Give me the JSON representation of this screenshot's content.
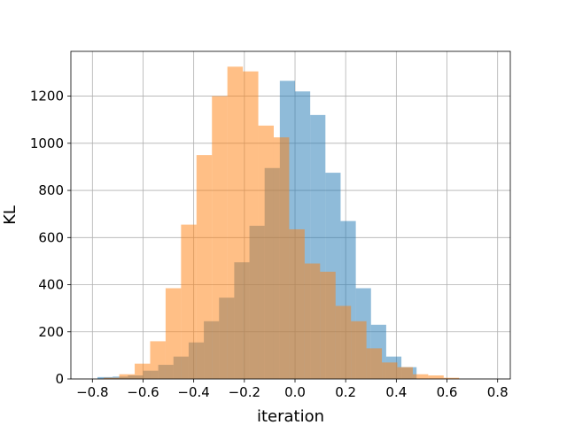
{
  "chart_data": {
    "type": "bar",
    "subtype": "overlaid-histogram",
    "title": "",
    "xlabel": "iteration",
    "ylabel": "KL",
    "xlim": [
      -0.885,
      0.85
    ],
    "ylim": [
      0,
      1390
    ],
    "x_ticks": [
      -0.8,
      -0.6,
      -0.4,
      -0.2,
      0.0,
      0.2,
      0.4,
      0.6,
      0.8
    ],
    "x_tick_labels": [
      "−0.8",
      "−0.6",
      "−0.4",
      "−0.2",
      "0.0",
      "0.2",
      "0.4",
      "0.6",
      "0.8"
    ],
    "y_ticks": [
      0,
      200,
      400,
      600,
      800,
      1000,
      1200
    ],
    "y_tick_labels": [
      "0",
      "200",
      "400",
      "600",
      "800",
      "1000",
      "1200"
    ],
    "grid": true,
    "legend": false,
    "series": [
      {
        "color": "#1f77b4",
        "opacity": 0.5,
        "bin_edges": [
          -0.78,
          -0.72,
          -0.66,
          -0.6,
          -0.54,
          -0.48,
          -0.42,
          -0.36,
          -0.3,
          -0.24,
          -0.18,
          -0.12,
          -0.06,
          0.0,
          0.06,
          0.12,
          0.18,
          0.24,
          0.3,
          0.36,
          0.42,
          0.48
        ],
        "counts": [
          8,
          10,
          15,
          35,
          60,
          95,
          155,
          245,
          345,
          495,
          650,
          895,
          1265,
          1220,
          1120,
          875,
          670,
          385,
          230,
          95,
          50
        ]
      },
      {
        "color": "#ff7f0e",
        "opacity": 0.5,
        "bin_edges": [
          -0.755,
          -0.694,
          -0.633,
          -0.572,
          -0.511,
          -0.45,
          -0.389,
          -0.328,
          -0.267,
          -0.206,
          -0.145,
          -0.084,
          -0.023,
          0.038,
          0.099,
          0.16,
          0.221,
          0.282,
          0.343,
          0.404,
          0.465,
          0.526,
          0.587,
          0.648
        ],
        "counts": [
          5,
          20,
          65,
          160,
          385,
          655,
          950,
          1200,
          1325,
          1305,
          1075,
          1025,
          635,
          490,
          455,
          310,
          245,
          130,
          70,
          50,
          20,
          15,
          5
        ]
      }
    ]
  }
}
